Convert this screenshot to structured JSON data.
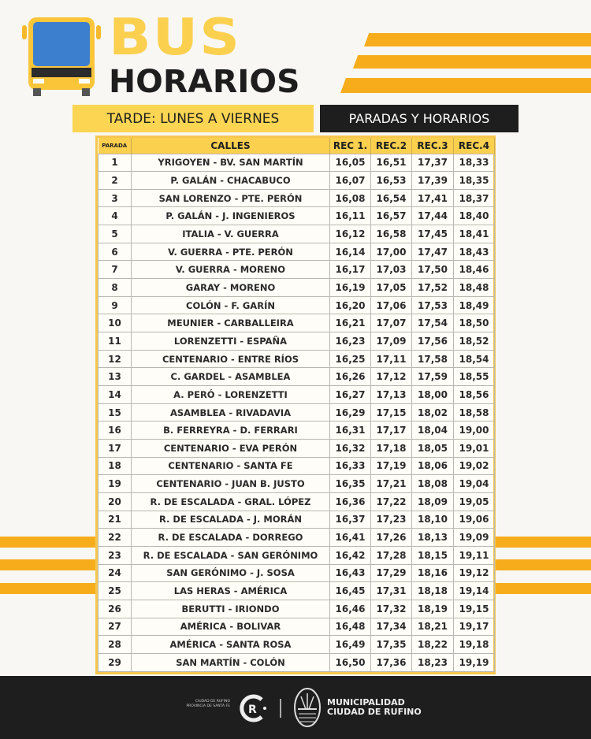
{
  "header": {
    "title_top": "BUS",
    "title_bottom": "HORARIOS",
    "subtitle_left": "TARDE: LUNES A VIERNES",
    "subtitle_right": "PARADAS Y HORARIOS"
  },
  "colors": {
    "accent_yellow": "#fbd04f",
    "stripe_orange": "#f7ad1b",
    "dark": "#1e1e1e"
  },
  "table": {
    "headers": [
      "PARADA",
      "CALLES",
      "REC 1.",
      "REC.2",
      "REC.3",
      "REC.4"
    ],
    "rows": [
      [
        "1",
        "YRIGOYEN - BV. SAN MARTÍN",
        "16,05",
        "16,51",
        "17,37",
        "18,33"
      ],
      [
        "2",
        "P. GALÁN - CHACABUCO",
        "16,07",
        "16,53",
        "17,39",
        "18,35"
      ],
      [
        "3",
        "SAN LORENZO - PTE. PERÓN",
        "16,08",
        "16,54",
        "17,41",
        "18,37"
      ],
      [
        "4",
        "P. GALÁN - J. INGENIEROS",
        "16,11",
        "16,57",
        "17,44",
        "18,40"
      ],
      [
        "5",
        "ITALIA - V. GUERRA",
        "16,12",
        "16,58",
        "17,45",
        "18,41"
      ],
      [
        "6",
        "V. GUERRA - PTE. PERÓN",
        "16,14",
        "17,00",
        "17,47",
        "18,43"
      ],
      [
        "7",
        "V. GUERRA - MORENO",
        "16,17",
        "17,03",
        "17,50",
        "18,46"
      ],
      [
        "8",
        "GARAY - MORENO",
        "16,19",
        "17,05",
        "17,52",
        "18,48"
      ],
      [
        "9",
        "COLÓN - F. GARÍN",
        "16,20",
        "17,06",
        "17,53",
        "18,49"
      ],
      [
        "10",
        "MEUNIER - CARBALLEIRA",
        "16,21",
        "17,07",
        "17,54",
        "18,50"
      ],
      [
        "11",
        "LORENZETTI - ESPAÑA",
        "16,23",
        "17,09",
        "17,56",
        "18,52"
      ],
      [
        "12",
        "CENTENARIO - ENTRE RÍOS",
        "16,25",
        "17,11",
        "17,58",
        "18,54"
      ],
      [
        "13",
        "C. GARDEL - ASAMBLEA",
        "16,26",
        "17,12",
        "17,59",
        "18,55"
      ],
      [
        "14",
        "A. PERÓ - LORENZETTI",
        "16,27",
        "17,13",
        "18,00",
        "18,56"
      ],
      [
        "15",
        "ASAMBLEA - RIVADAVIA",
        "16,29",
        "17,15",
        "18,02",
        "18,58"
      ],
      [
        "16",
        "B. FERREYRA - D. FERRARI",
        "16,31",
        "17,17",
        "18,04",
        "19,00"
      ],
      [
        "17",
        "CENTENARIO - EVA PERÓN",
        "16,32",
        "17,18",
        "18,05",
        "19,01"
      ],
      [
        "18",
        "CENTENARIO - SANTA FE",
        "16,33",
        "17,19",
        "18,06",
        "19,02"
      ],
      [
        "19",
        "CENTENARIO - JUAN B. JUSTO",
        "16,35",
        "17,21",
        "18,08",
        "19,04"
      ],
      [
        "20",
        "R. DE ESCALADA - GRAL. LÓPEZ",
        "16,36",
        "17,22",
        "18,09",
        "19,05"
      ],
      [
        "21",
        "R. DE ESCALADA - J. MORÁN",
        "16,37",
        "17,23",
        "18,10",
        "19,06"
      ],
      [
        "22",
        "R. DE ESCALADA - DORREGO",
        "16,41",
        "17,26",
        "18,13",
        "19,09"
      ],
      [
        "23",
        "R. DE ESCALADA - SAN GERÓNIMO",
        "16,42",
        "17,28",
        "18,15",
        "19,11"
      ],
      [
        "24",
        "SAN GERÓNIMO - J. SOSA",
        "16,43",
        "17,29",
        "18,16",
        "19,12"
      ],
      [
        "25",
        "LAS HERAS - AMÉRICA",
        "16,45",
        "17,31",
        "18,18",
        "19,14"
      ],
      [
        "26",
        "BERUTTI - IRIONDO",
        "16,46",
        "17,32",
        "18,19",
        "19,15"
      ],
      [
        "27",
        "AMÉRICA - BOLIVAR",
        "16,48",
        "17,34",
        "18,21",
        "19,17"
      ],
      [
        "28",
        "AMÉRICA - SANTA ROSA",
        "16,49",
        "17,35",
        "18,22",
        "19,18"
      ],
      [
        "29",
        "SAN MARTÍN - COLÓN",
        "16,50",
        "17,36",
        "18,23",
        "19,19"
      ]
    ]
  },
  "footer": {
    "small_text_1": "CIUDAD DE RUFINO",
    "small_text_2": "PROVINCIA DE SANTA FE",
    "muni_line1": "MUNICIPALIDAD",
    "muni_line2": "CIUDAD DE RUFINO"
  }
}
